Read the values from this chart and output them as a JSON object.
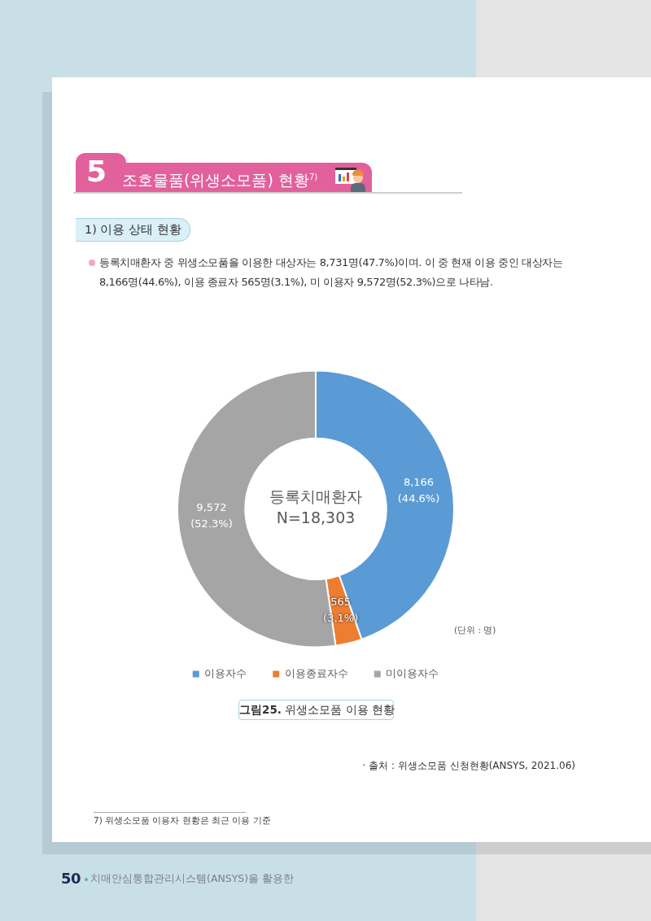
{
  "chart_data": {
    "type": "donut",
    "title": "조호물품(위생소모품) 현황$^{7)}$",
    "subtitle": "1) 이용 상태 현황",
    "categories": [
      "이용자수",
      "이용종료자수",
      "미이용자수"
    ],
    "values": [
      8166,
      565,
      9572
    ],
    "colors": [
      "#5b9bd5",
      "#ed7d31",
      "#a5a5a5"
    ],
    "value_labels": [
      "8,166 (44.6%)",
      "565 (3.1%)",
      "9,572 (52.3%)"
    ],
    "legend": "bottom",
    "annotations": [
      "5",
      "등록치매환자 중 위생소모품을 이용한 대상자는 8,731명(47.7%)이며. 이 중 현재 이용 중인 대상자는 8,166명(44.6%), 이용 종료자 565명(3.1%), 미 이용자 9,572명(52.3%)으로 나타남.",
      "등록치매환자",
      "N=18,303",
      "(단위 : 명)",
      "그림25. 위생소모품 이용 현황",
      "· 출처 : 위생소모품 신청현황(ANSYS, 2021.06)",
      "7) 위생소모품 이용자 현황은 최근 이용 기준",
      "50",
      "치매안심통합관리시스템(ANSYS)을 활용한"
    ]
  }
}
